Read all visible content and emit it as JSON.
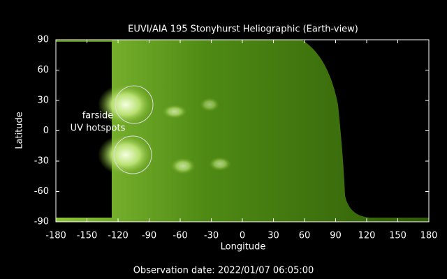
{
  "chart_data": {
    "type": "image",
    "title": "EUVI/AIA 195 Stonyhurst Heliographic (Earth-view)",
    "x_label": "Longitude",
    "y_label": "Latitude",
    "xlim": [
      -180,
      180
    ],
    "ylim": [
      -90,
      90
    ],
    "xticks": [
      -180,
      -150,
      -120,
      -90,
      -60,
      -30,
      0,
      30,
      60,
      90,
      120,
      150,
      180
    ],
    "yticks": [
      -90,
      -60,
      -30,
      0,
      30,
      60,
      90
    ],
    "annotation": [
      "farside",
      "UV hotspots"
    ],
    "footer": "Observation date: 2022/01/07 06:05:00"
  }
}
